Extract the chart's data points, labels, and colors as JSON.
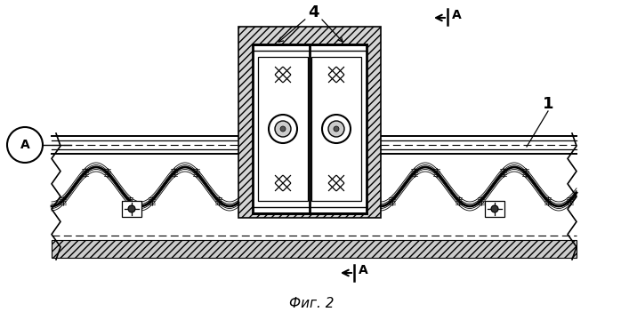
{
  "title": "Фиг. 2",
  "bg_color": "#ffffff",
  "label_4": "4",
  "label_1": "1",
  "label_A": "А",
  "fig_width": 6.98,
  "fig_height": 3.51,
  "line_color": "#000000",
  "hatch_fc": "#d0d0d0",
  "white": "#ffffff"
}
